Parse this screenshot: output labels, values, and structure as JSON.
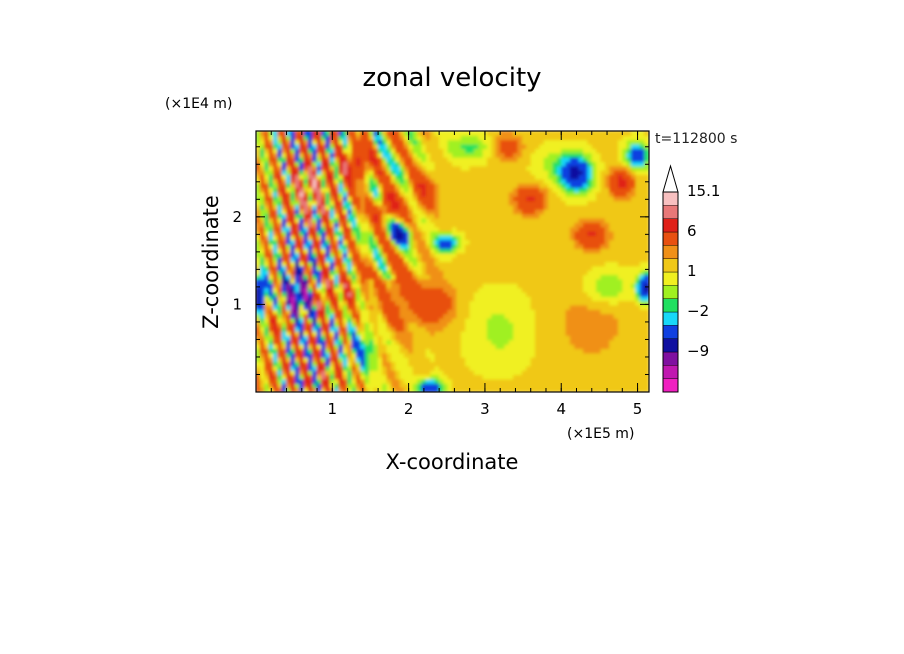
{
  "chart_data": {
    "type": "heatmap",
    "title": "zonal velocity",
    "xlabel": "X-coordinate",
    "ylabel": "Z-coordinate",
    "x_unit": "(×1E5 m)",
    "y_unit": "(×1E4 m)",
    "time_label": "t=112800 s",
    "xlim": [
      0,
      5.15
    ],
    "ylim": [
      0,
      2.98
    ],
    "x_ticks": [
      "1",
      "2",
      "3",
      "4",
      "5"
    ],
    "y_ticks": [
      "1",
      "2"
    ],
    "colorbar": {
      "levels": [
        -15,
        -12,
        -9,
        -6,
        -3,
        -2,
        -1,
        0,
        1,
        2,
        3,
        6,
        9,
        12,
        15.1
      ],
      "colors": [
        "#f020c0",
        "#c018b0",
        "#8010a0",
        "#1010a0",
        "#1040e0",
        "#18d8f8",
        "#20e060",
        "#a0f020",
        "#f0f020",
        "#f0c818",
        "#f09018",
        "#e85010",
        "#e02018",
        "#e87878",
        "#f8c0c0"
      ],
      "labels": [
        "15.1",
        "6",
        "1",
        "−2",
        "−9"
      ]
    }
  }
}
